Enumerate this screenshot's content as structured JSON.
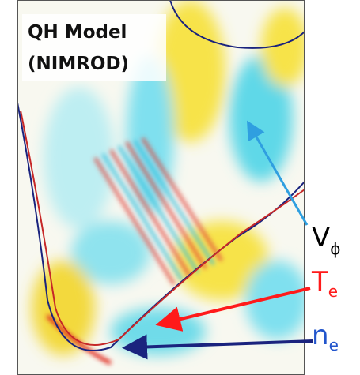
{
  "title": {
    "line1": "QH Model",
    "line2": "(NIMROD)"
  },
  "labels": [
    {
      "main": "V",
      "sub": "ϕ"
    },
    {
      "main": "T",
      "sub": "e"
    },
    {
      "main": "n",
      "sub": "e"
    }
  ]
}
